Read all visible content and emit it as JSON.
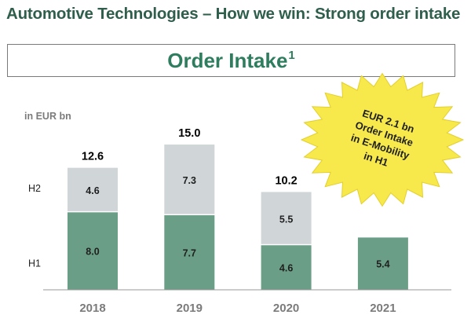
{
  "header": {
    "title": "Automotive Technologies – How we win: Strong order intake",
    "banner_title": "Order Intake",
    "banner_sup": "1"
  },
  "chart_data": {
    "type": "bar",
    "stacked": true,
    "unit_label": "in EUR bn",
    "categories": [
      "2018",
      "2019",
      "2020",
      "2021"
    ],
    "series": [
      {
        "name": "H1",
        "values": [
          8.0,
          7.7,
          4.6,
          5.4
        ],
        "color": "#6b9e87"
      },
      {
        "name": "H2",
        "values": [
          4.6,
          7.3,
          5.5,
          null
        ],
        "color": "#d0d5d8"
      }
    ],
    "segment_labels": {
      "H1": [
        "8.0",
        "7.7",
        "4.6",
        "5.4"
      ],
      "H2": [
        "4.6",
        "7.3",
        "5.5",
        null
      ]
    },
    "totals": [
      "12.6",
      "15.0",
      "10.2",
      null
    ],
    "legend": [
      "H1",
      "H2"
    ],
    "ylim": [
      0,
      15.5
    ],
    "callout": {
      "lines": [
        "EUR 2.1 bn",
        "Order Intake",
        "in E-Mobility",
        "in H1"
      ],
      "color": "#f7e94b"
    }
  },
  "colors": {
    "title": "#2f5e4c",
    "banner_text": "#2e7d5e",
    "axis": "#7a7a7a"
  }
}
